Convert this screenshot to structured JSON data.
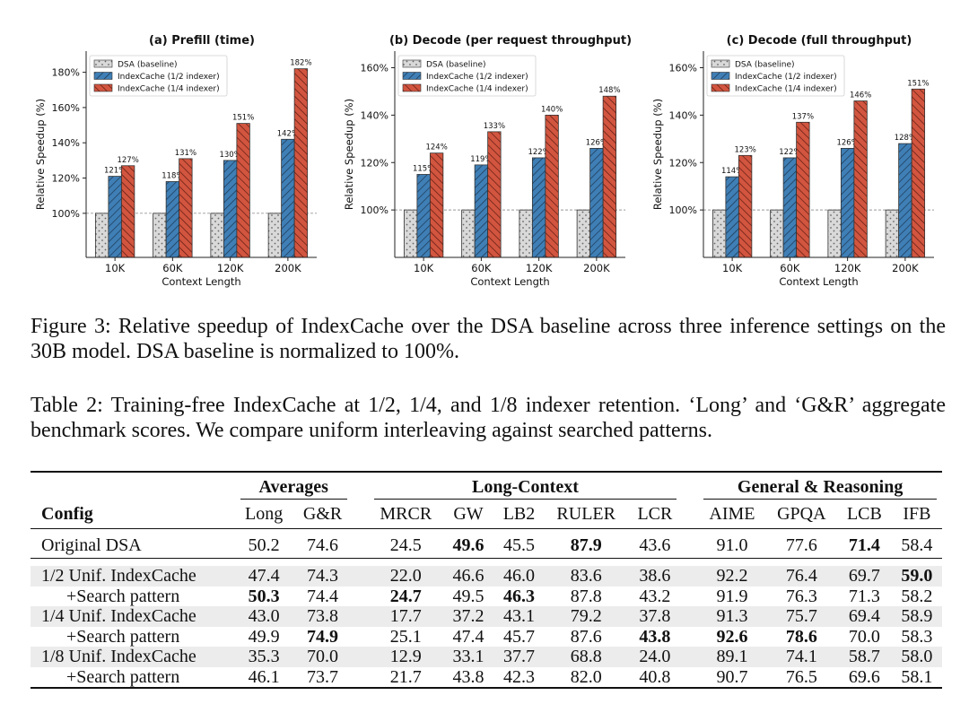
{
  "chart_data": [
    {
      "type": "bar",
      "title": "(a) Prefill (time)",
      "xlabel": "Context Length",
      "ylabel": "Relative Speedup (%)",
      "categories": [
        "10K",
        "60K",
        "120K",
        "200K"
      ],
      "ylim": [
        75,
        192
      ],
      "yticks": [
        "100%",
        "120%",
        "140%",
        "160%",
        "180%"
      ],
      "legend_position": "top-left",
      "series": [
        {
          "name": "DSA (baseline)",
          "values": [
            100,
            100,
            100,
            100
          ],
          "color": "#d9d9d9",
          "hatch": "dots"
        },
        {
          "name": "IndexCache (1/2 indexer)",
          "values": [
            121,
            118,
            130,
            142
          ],
          "labels": [
            "121%",
            "118%",
            "130%",
            "142%"
          ],
          "color": "#3f7fb6",
          "hatch": "forward"
        },
        {
          "name": "IndexCache (1/4 indexer)",
          "values": [
            127,
            131,
            151,
            182
          ],
          "labels": [
            "127%",
            "131%",
            "151%",
            "182%"
          ],
          "color": "#d2553f",
          "hatch": "backward"
        }
      ]
    },
    {
      "type": "bar",
      "title": "(b) Decode (per request throughput)",
      "xlabel": "Context Length",
      "ylabel": "Relative Speedup (%)",
      "categories": [
        "10K",
        "60K",
        "120K",
        "200K"
      ],
      "ylim": [
        80,
        167
      ],
      "yticks": [
        "100%",
        "120%",
        "140%",
        "160%"
      ],
      "legend_position": "top-left",
      "series": [
        {
          "name": "DSA (baseline)",
          "values": [
            100,
            100,
            100,
            100
          ],
          "color": "#d9d9d9",
          "hatch": "dots"
        },
        {
          "name": "IndexCache (1/2 indexer)",
          "values": [
            115,
            119,
            122,
            126
          ],
          "labels": [
            "115%",
            "119%",
            "122%",
            "126%"
          ],
          "color": "#3f7fb6",
          "hatch": "forward"
        },
        {
          "name": "IndexCache (1/4 indexer)",
          "values": [
            124,
            133,
            140,
            148
          ],
          "labels": [
            "124%",
            "133%",
            "140%",
            "148%"
          ],
          "color": "#d2553f",
          "hatch": "backward"
        }
      ]
    },
    {
      "type": "bar",
      "title": "(c) Decode (full throughput)",
      "xlabel": "Context Length",
      "ylabel": "Relative Speedup (%)",
      "categories": [
        "10K",
        "60K",
        "120K",
        "200K"
      ],
      "ylim": [
        80,
        167
      ],
      "yticks": [
        "100%",
        "120%",
        "140%",
        "160%"
      ],
      "legend_position": "top-left",
      "series": [
        {
          "name": "DSA (baseline)",
          "values": [
            100,
            100,
            100,
            100
          ],
          "color": "#d9d9d9",
          "hatch": "dots"
        },
        {
          "name": "IndexCache (1/2 indexer)",
          "values": [
            114,
            122,
            126,
            128
          ],
          "labels": [
            "114%",
            "122%",
            "126%",
            "128%"
          ],
          "color": "#3f7fb6",
          "hatch": "forward"
        },
        {
          "name": "IndexCache (1/4 indexer)",
          "values": [
            123,
            137,
            146,
            151
          ],
          "labels": [
            "123%",
            "137%",
            "146%",
            "151%"
          ],
          "color": "#d2553f",
          "hatch": "backward"
        }
      ]
    }
  ],
  "figure_caption": "Figure 3: Relative speedup of IndexCache over the DSA baseline across three inference settings on the 30B model. DSA baseline is normalized to 100%.",
  "table_caption": "Table 2: Training-free IndexCache at 1/2, 1/4, and 1/8 indexer retention. ‘Long’ and ‘G&R’ aggregate benchmark scores. We compare uniform interleaving against searched patterns.",
  "table": {
    "groups": {
      "averages": "Averages",
      "long_context": "Long-Context",
      "general": "General & Reasoning"
    },
    "config_header": "Config",
    "columns": [
      "Long",
      "G&R",
      "MRCR",
      "GW",
      "LB2",
      "RULER",
      "LCR",
      "AIME",
      "GPQA",
      "LCB",
      "IFB"
    ],
    "rows": [
      {
        "config": "Original DSA",
        "values": [
          "50.2",
          "74.6",
          "24.5",
          "49.6",
          "45.5",
          "87.9",
          "43.6",
          "91.0",
          "77.6",
          "71.4",
          "58.4"
        ],
        "bold": [
          3,
          5,
          9
        ]
      },
      {
        "config": "1/2 Unif. IndexCache",
        "values": [
          "47.4",
          "74.3",
          "22.0",
          "46.6",
          "46.0",
          "83.6",
          "38.6",
          "92.2",
          "76.4",
          "69.7",
          "59.0"
        ],
        "bold": [
          10
        ]
      },
      {
        "config": "+Search pattern",
        "values": [
          "50.3",
          "74.4",
          "24.7",
          "49.5",
          "46.3",
          "87.8",
          "43.2",
          "91.9",
          "76.3",
          "71.3",
          "58.2"
        ],
        "bold": [
          0,
          2,
          4
        ]
      },
      {
        "config": "1/4 Unif. IndexCache",
        "values": [
          "43.0",
          "73.8",
          "17.7",
          "37.2",
          "43.1",
          "79.2",
          "37.8",
          "91.3",
          "75.7",
          "69.4",
          "58.9"
        ],
        "bold": []
      },
      {
        "config": "+Search pattern",
        "values": [
          "49.9",
          "74.9",
          "25.1",
          "47.4",
          "45.7",
          "87.6",
          "43.8",
          "92.6",
          "78.6",
          "70.0",
          "58.3"
        ],
        "bold": [
          1,
          6,
          7,
          8
        ]
      },
      {
        "config": "1/8 Unif. IndexCache",
        "values": [
          "35.3",
          "70.0",
          "12.9",
          "33.1",
          "37.7",
          "68.8",
          "24.0",
          "89.1",
          "74.1",
          "58.7",
          "58.0"
        ],
        "bold": []
      },
      {
        "config": "+Search pattern",
        "values": [
          "46.1",
          "73.7",
          "21.7",
          "43.8",
          "42.3",
          "82.0",
          "40.8",
          "90.7",
          "76.5",
          "69.6",
          "58.1"
        ],
        "bold": []
      }
    ]
  }
}
